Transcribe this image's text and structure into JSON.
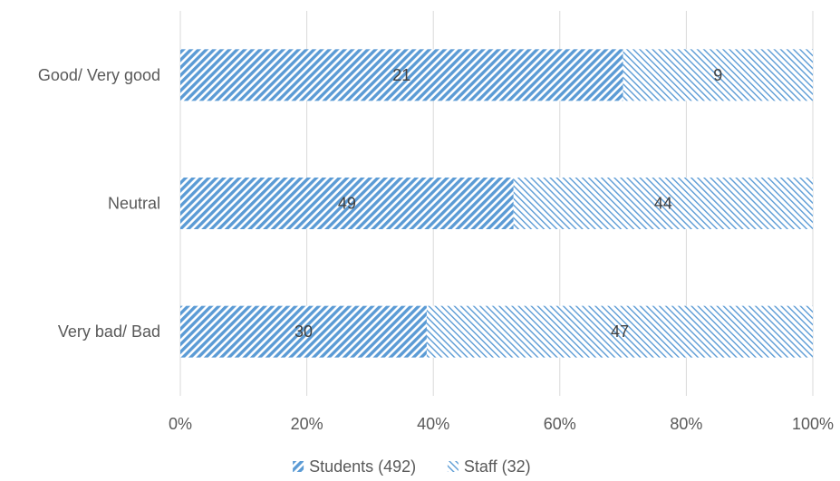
{
  "chart_data": {
    "type": "bar",
    "orientation": "horizontal",
    "stacking": "percent",
    "categories": [
      "Good/ Very good",
      "Neutral",
      "Very bad/ Bad"
    ],
    "series": [
      {
        "name": "Students (492)",
        "values": [
          21,
          49,
          30
        ],
        "color": "#5b9bd5",
        "pattern": "dense-diagonal"
      },
      {
        "name": "Staff (32)",
        "values": [
          9,
          44,
          47
        ],
        "color": "#5b9bd5",
        "pattern": "light-diagonal"
      }
    ],
    "x_ticks": [
      "0%",
      "20%",
      "40%",
      "60%",
      "80%",
      "100%"
    ],
    "xlim": [
      0,
      100
    ],
    "grid": "vertical",
    "legend": "bottom-center"
  }
}
